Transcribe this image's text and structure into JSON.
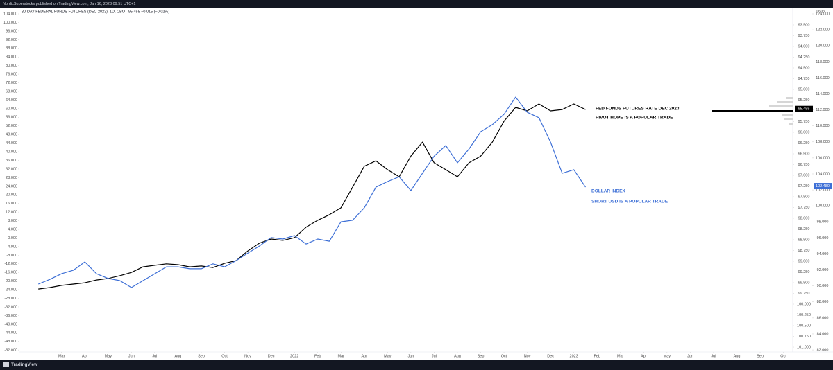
{
  "chart_data": {
    "type": "line",
    "source": "NordicSuperstocks published on TradingView.com, Jan 16, 2023 09:51 UTC+1",
    "title": "30-DAY FEDERAL FUNDS FUTURES (DEC 2023), 1D, CBOT  95.455  −0.015 (−0.02%)",
    "footer": "TradingView",
    "xlim": [
      0.19,
      33.4
    ],
    "xticks": [
      {
        "value": 2,
        "label": "Mar"
      },
      {
        "value": 3,
        "label": "Apr"
      },
      {
        "value": 4,
        "label": "May"
      },
      {
        "value": 5,
        "label": "Jun"
      },
      {
        "value": 6,
        "label": "Jul"
      },
      {
        "value": 7,
        "label": "Aug"
      },
      {
        "value": 8,
        "label": "Sep"
      },
      {
        "value": 9,
        "label": "Oct"
      },
      {
        "value": 10,
        "label": "Nov"
      },
      {
        "value": 11,
        "label": "Dec"
      },
      {
        "value": 12,
        "label": "2022"
      },
      {
        "value": 13,
        "label": "Feb"
      },
      {
        "value": 14,
        "label": "Mar"
      },
      {
        "value": 15,
        "label": "Apr"
      },
      {
        "value": 16,
        "label": "May"
      },
      {
        "value": 17,
        "label": "Jun"
      },
      {
        "value": 18,
        "label": "Jul"
      },
      {
        "value": 19,
        "label": "Aug"
      },
      {
        "value": 20,
        "label": "Sep"
      },
      {
        "value": 21,
        "label": "Oct"
      },
      {
        "value": 22,
        "label": "Nov"
      },
      {
        "value": 23,
        "label": "Dec"
      },
      {
        "value": 24,
        "label": "2023"
      },
      {
        "value": 25,
        "label": "Feb"
      },
      {
        "value": 26,
        "label": "Mar"
      },
      {
        "value": 27,
        "label": "Apr"
      },
      {
        "value": 28,
        "label": "May"
      },
      {
        "value": 29,
        "label": "Jun"
      },
      {
        "value": 30,
        "label": "Jul"
      },
      {
        "value": 31,
        "label": "Aug"
      },
      {
        "value": 32,
        "label": "Sep"
      },
      {
        "value": 33,
        "label": "Oct"
      }
    ],
    "ylim": [
      -54.2,
      106.9
    ],
    "yticks": [
      {
        "value": 104,
        "label": "104.000"
      },
      {
        "value": 100,
        "label": "100.000"
      },
      {
        "value": 96,
        "label": "96.000"
      },
      {
        "value": 92,
        "label": "92.000"
      },
      {
        "value": 88,
        "label": "88.000"
      },
      {
        "value": 84,
        "label": "84.000"
      },
      {
        "value": 80,
        "label": "80.000"
      },
      {
        "value": 76,
        "label": "76.000"
      },
      {
        "value": 72,
        "label": "72.000"
      },
      {
        "value": 68,
        "label": "68.000"
      },
      {
        "value": 64,
        "label": "64.000"
      },
      {
        "value": 60,
        "label": "60.000"
      },
      {
        "value": 56,
        "label": "56.000"
      },
      {
        "value": 52,
        "label": "52.000"
      },
      {
        "value": 48,
        "label": "48.000"
      },
      {
        "value": 44,
        "label": "44.000"
      },
      {
        "value": 40,
        "label": "40.000"
      },
      {
        "value": 36,
        "label": "36.000"
      },
      {
        "value": 32,
        "label": "32.000"
      },
      {
        "value": 28,
        "label": "28.000"
      },
      {
        "value": 24,
        "label": "24.000"
      },
      {
        "value": 20,
        "label": "20.000"
      },
      {
        "value": 16,
        "label": "16.000"
      },
      {
        "value": 12,
        "label": "12.000"
      },
      {
        "value": 8,
        "label": "8.000"
      },
      {
        "value": 4,
        "label": "4.000"
      },
      {
        "value": 0,
        "label": "0.000"
      },
      {
        "value": -4,
        "label": "-4.000"
      },
      {
        "value": -8,
        "label": "-8.000"
      },
      {
        "value": -12,
        "label": "-12.000"
      },
      {
        "value": -16,
        "label": "-16.000"
      },
      {
        "value": -20,
        "label": "-20.000"
      },
      {
        "value": -24,
        "label": "-24.000"
      },
      {
        "value": -28,
        "label": "-28.000"
      },
      {
        "value": -32,
        "label": "-32.000"
      },
      {
        "value": -36,
        "label": "-36.000"
      },
      {
        "value": -40,
        "label": "-40.000"
      },
      {
        "value": -44,
        "label": "-44.000"
      },
      {
        "value": -48,
        "label": "-48.000"
      },
      {
        "value": -52,
        "label": "-52.000"
      }
    ],
    "y2lim": [
      101.177,
      93.097
    ],
    "y2ticks": [
      {
        "value": 93.5,
        "label": "93.500"
      },
      {
        "value": 93.75,
        "label": "93.750"
      },
      {
        "value": 94,
        "label": "94.000"
      },
      {
        "value": 94.25,
        "label": "94.250"
      },
      {
        "value": 94.5,
        "label": "94.500"
      },
      {
        "value": 94.75,
        "label": "94.750"
      },
      {
        "value": 95,
        "label": "95.000"
      },
      {
        "value": 95.25,
        "label": "95.250"
      },
      {
        "value": 95.75,
        "label": "95.750"
      },
      {
        "value": 96,
        "label": "96.000"
      },
      {
        "value": 96.25,
        "label": "96.250"
      },
      {
        "value": 96.5,
        "label": "96.500"
      },
      {
        "value": 96.75,
        "label": "96.750"
      },
      {
        "value": 97,
        "label": "97.000"
      },
      {
        "value": 97.25,
        "label": "97.250"
      },
      {
        "value": 97.5,
        "label": "97.500"
      },
      {
        "value": 97.75,
        "label": "97.750"
      },
      {
        "value": 98,
        "label": "98.000"
      },
      {
        "value": 98.25,
        "label": "98.250"
      },
      {
        "value": 98.5,
        "label": "98.500"
      },
      {
        "value": 98.75,
        "label": "98.750"
      },
      {
        "value": 99,
        "label": "99.000"
      },
      {
        "value": 99.25,
        "label": "99.250"
      },
      {
        "value": 99.5,
        "label": "99.500"
      },
      {
        "value": 99.75,
        "label": "99.750"
      },
      {
        "value": 100,
        "label": "100.000"
      },
      {
        "value": 100.25,
        "label": "100.250"
      },
      {
        "value": 100.5,
        "label": "100.500"
      },
      {
        "value": 100.75,
        "label": "100.750"
      },
      {
        "value": 101,
        "label": "101.000"
      }
    ],
    "y2_last": {
      "value": 95.455,
      "label": "95.455"
    },
    "y3label": "USD",
    "y3lim": [
      81.4,
      124.78
    ],
    "y3ticks": [
      {
        "value": 124,
        "label": "124.000"
      },
      {
        "value": 122,
        "label": "122.000"
      },
      {
        "value": 120,
        "label": "120.000"
      },
      {
        "value": 118,
        "label": "118.000"
      },
      {
        "value": 116,
        "label": "116.000"
      },
      {
        "value": 114,
        "label": "114.000"
      },
      {
        "value": 112,
        "label": "112.000"
      },
      {
        "value": 110,
        "label": "110.000"
      },
      {
        "value": 108,
        "label": "108.000"
      },
      {
        "value": 106,
        "label": "106.000"
      },
      {
        "value": 104,
        "label": "104.000"
      },
      {
        "value": 102,
        "label": "102.000"
      },
      {
        "value": 100,
        "label": "100.000"
      },
      {
        "value": 98,
        "label": "98.000"
      },
      {
        "value": 96,
        "label": "96.000"
      },
      {
        "value": 94,
        "label": "94.000"
      },
      {
        "value": 92,
        "label": "92.000"
      },
      {
        "value": 90,
        "label": "90.000"
      },
      {
        "value": 88,
        "label": "88.000"
      },
      {
        "value": 86,
        "label": "86.000"
      },
      {
        "value": 84,
        "label": "84.000"
      },
      {
        "value": 82,
        "label": "82.000"
      }
    ],
    "y3_last": {
      "value": 102.48,
      "label": "102.480"
    },
    "x": [
      1,
      1.5,
      2,
      2.5,
      3,
      3.5,
      4,
      4.5,
      5,
      5.5,
      6,
      6.5,
      7,
      7.5,
      8,
      8.5,
      9,
      9.5,
      10,
      10.5,
      11,
      11.5,
      12,
      12.5,
      13,
      13.5,
      14,
      14.5,
      15,
      15.5,
      16,
      16.5,
      17,
      17.5,
      18,
      18.5,
      19,
      19.5,
      20,
      20.5,
      21,
      21.5,
      22,
      22.5,
      23,
      23.5,
      24,
      24.5
    ],
    "series": [
      {
        "name": "FED FUNDS FUTURES RATE DEC 2023",
        "note": "PIVOT HOPE IS A POPULAR TRADE",
        "color": "#000000",
        "values": [
          -23.7,
          -23,
          -22,
          -21.4,
          -20.8,
          -19.5,
          -18.8,
          -17.5,
          -16,
          -13.4,
          -12.7,
          -12,
          -12.4,
          -13.4,
          -13,
          -13.7,
          -11.8,
          -10.5,
          -6,
          -2.4,
          -0.5,
          -1.1,
          0.1,
          5,
          8.2,
          10.8,
          14,
          23.6,
          33.3,
          35.8,
          31.7,
          28.4,
          38,
          44.5,
          34.9,
          31.7,
          28.4,
          34.9,
          38,
          44.5,
          54.2,
          60.6,
          59,
          62.2,
          59,
          59.6,
          62.2,
          59.6
        ]
      },
      {
        "name": "DOLLAR INDEX",
        "note": "SHORT USD IS A POPULAR TRADE",
        "color": "#3d6fd6",
        "values": [
          -21.4,
          -19.2,
          -16.6,
          -15,
          -11.1,
          -16.6,
          -18.8,
          -19.8,
          -23,
          -19.8,
          -16.6,
          -13.4,
          -13.4,
          -14.3,
          -14.3,
          -12,
          -13.4,
          -10.5,
          -7,
          -3.7,
          0.2,
          -0.5,
          1.1,
          -2.8,
          -0.5,
          -1.5,
          7.5,
          8.2,
          14,
          23.6,
          26.2,
          28.4,
          22,
          30,
          38,
          42.9,
          34.9,
          41.3,
          49.3,
          52.6,
          57.4,
          65.4,
          58.3,
          55.8,
          44.5,
          30,
          31.7,
          23.6
        ]
      }
    ]
  }
}
